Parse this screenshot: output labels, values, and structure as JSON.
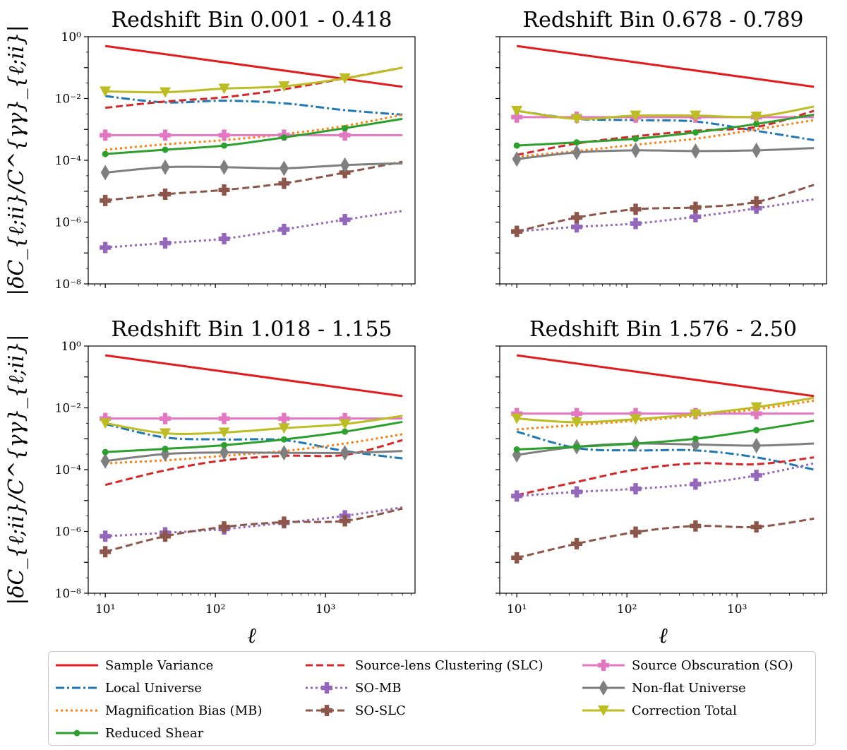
{
  "figure": {
    "ylabel": "|δC_{ℓ;ii}/C^{γγ}_{ℓ;ii}|",
    "xlabel": "ℓ"
  },
  "colors": {
    "sample_variance": "#e41a1c",
    "local_universe": "#1f77b4",
    "magnification_bias": "#ff7f0e",
    "reduced_shear": "#2ca02c",
    "slc": "#d62728",
    "so_mb": "#9467bd",
    "so_slc": "#8c564b",
    "so": "#e377c2",
    "nonflat": "#7f7f7f",
    "total": "#bcbd22"
  },
  "chart_data": [
    {
      "type": "line",
      "title": "Redshift Bin 0.001 - 0.418",
      "xscale": "log",
      "yscale": "log",
      "xlim": [
        7,
        6500
      ],
      "ylim": [
        1e-08,
        1
      ],
      "x": [
        10,
        35,
        120,
        420,
        1500,
        5000
      ],
      "xticks": [
        "10^1",
        "10^2",
        "10^3"
      ],
      "yticks": [
        "10^0",
        "10^-2",
        "10^-4",
        "10^-6",
        "10^-8"
      ],
      "series": [
        {
          "name": "Sample Variance",
          "key": "sample_variance",
          "values": [
            0.5,
            0.27,
            0.15,
            0.08,
            0.045,
            0.024
          ]
        },
        {
          "name": "Local Universe",
          "key": "local_universe",
          "values": [
            0.012,
            0.0075,
            0.0085,
            0.007,
            0.0042,
            0.003
          ]
        },
        {
          "name": "Magnification Bias (MB)",
          "key": "magnification_bias",
          "values": [
            0.00022,
            0.00033,
            0.00045,
            0.0007,
            0.0013,
            0.003
          ]
        },
        {
          "name": "Reduced Shear",
          "key": "reduced_shear",
          "values": [
            0.00016,
            0.00022,
            0.0003,
            0.00055,
            0.0011,
            0.0022
          ]
        },
        {
          "name": "Source-lens Clustering (SLC)",
          "key": "slc",
          "values": [
            0.005,
            0.008,
            0.011,
            0.02,
            0.045,
            0.1
          ]
        },
        {
          "name": "SO-MB",
          "key": "so_mb",
          "values": [
            1.5e-07,
            2.1e-07,
            2.9e-07,
            5.8e-07,
            1.2e-06,
            2.3e-06
          ]
        },
        {
          "name": "SO-SLC",
          "key": "so_slc",
          "values": [
            5e-06,
            8e-06,
            1.1e-05,
            1.8e-05,
            4e-05,
            9e-05
          ]
        },
        {
          "name": "Source Obscuration (SO)",
          "key": "so",
          "values": [
            0.00065,
            0.00065,
            0.00065,
            0.00065,
            0.00065,
            0.00065
          ]
        },
        {
          "name": "Non-flat Universe",
          "key": "nonflat",
          "values": [
            4e-05,
            6e-05,
            6e-05,
            5.5e-05,
            7e-05,
            8e-05
          ]
        },
        {
          "name": "Correction Total",
          "key": "total",
          "values": [
            0.017,
            0.016,
            0.021,
            0.025,
            0.045,
            0.1
          ]
        }
      ]
    },
    {
      "type": "line",
      "title": "Redshift Bin 0.678 - 0.789",
      "xscale": "log",
      "yscale": "log",
      "xlim": [
        7,
        6500
      ],
      "ylim": [
        1e-08,
        1
      ],
      "x": [
        10,
        35,
        120,
        420,
        1500,
        5000
      ],
      "xticks": [
        "10^1",
        "10^2",
        "10^3"
      ],
      "yticks": [
        "10^0",
        "10^-2",
        "10^-4",
        "10^-6",
        "10^-8"
      ],
      "series": [
        {
          "name": "Sample Variance",
          "key": "sample_variance",
          "values": [
            0.5,
            0.27,
            0.15,
            0.08,
            0.045,
            0.024
          ]
        },
        {
          "name": "Local Universe",
          "key": "local_universe",
          "values": [
            0.004,
            0.0022,
            0.002,
            0.0018,
            0.0009,
            0.00045
          ]
        },
        {
          "name": "Magnification Bias (MB)",
          "key": "magnification_bias",
          "values": [
            0.00013,
            0.0002,
            0.00032,
            0.0005,
            0.001,
            0.002
          ]
        },
        {
          "name": "Reduced Shear",
          "key": "reduced_shear",
          "values": [
            0.0003,
            0.00038,
            0.0005,
            0.0008,
            0.0015,
            0.003
          ]
        },
        {
          "name": "Source-lens Clustering (SLC)",
          "key": "slc",
          "values": [
            0.00015,
            0.00035,
            0.0006,
            0.0009,
            0.0012,
            0.004
          ]
        },
        {
          "name": "SO-MB",
          "key": "so_mb",
          "values": [
            5e-07,
            7e-07,
            9e-07,
            1.5e-06,
            2.8e-06,
            5.5e-06
          ]
        },
        {
          "name": "SO-SLC",
          "key": "so_slc",
          "values": [
            5e-07,
            1.4e-06,
            2.6e-06,
            3e-06,
            4.5e-06,
            1.6e-05
          ]
        },
        {
          "name": "Source Obscuration (SO)",
          "key": "so",
          "values": [
            0.0025,
            0.0025,
            0.0025,
            0.0025,
            0.0025,
            0.0025
          ]
        },
        {
          "name": "Non-flat Universe",
          "key": "nonflat",
          "values": [
            0.00011,
            0.00018,
            0.00021,
            0.0002,
            0.00021,
            0.00025
          ]
        },
        {
          "name": "Correction Total",
          "key": "total",
          "values": [
            0.004,
            0.0022,
            0.0028,
            0.0028,
            0.0026,
            0.0055
          ]
        }
      ]
    },
    {
      "type": "line",
      "title": "Redshift Bin 1.018 - 1.155",
      "xscale": "log",
      "yscale": "log",
      "xlim": [
        7,
        6500
      ],
      "ylim": [
        1e-08,
        1
      ],
      "x": [
        10,
        35,
        120,
        420,
        1500,
        5000
      ],
      "xticks": [
        "10^1",
        "10^2",
        "10^3"
      ],
      "yticks": [
        "10^0",
        "10^-2",
        "10^-4",
        "10^-6",
        "10^-8"
      ],
      "series": [
        {
          "name": "Sample Variance",
          "key": "sample_variance",
          "values": [
            0.5,
            0.27,
            0.15,
            0.08,
            0.045,
            0.024
          ]
        },
        {
          "name": "Local Universe",
          "key": "local_universe",
          "values": [
            0.003,
            0.0011,
            0.00095,
            0.0009,
            0.0004,
            0.00023
          ]
        },
        {
          "name": "Magnification Bias (MB)",
          "key": "magnification_bias",
          "values": [
            0.00016,
            0.0002,
            0.00028,
            0.0004,
            0.0007,
            0.0014
          ]
        },
        {
          "name": "Reduced Shear",
          "key": "reduced_shear",
          "values": [
            0.00037,
            0.00047,
            0.00062,
            0.00095,
            0.0017,
            0.0035
          ]
        },
        {
          "name": "Source-lens Clustering (SLC)",
          "key": "slc",
          "values": [
            3.2e-05,
            9.5e-05,
            0.0002,
            0.00028,
            0.0003,
            0.0009
          ]
        },
        {
          "name": "SO-MB",
          "key": "so_mb",
          "values": [
            7e-07,
            9e-07,
            1.2e-06,
            1.9e-06,
            3.2e-06,
            6e-06
          ]
        },
        {
          "name": "SO-SLC",
          "key": "so_slc",
          "values": [
            2.2e-07,
            7e-07,
            1.4e-06,
            2e-06,
            2.2e-06,
            5.5e-06
          ]
        },
        {
          "name": "Source Obscuration (SO)",
          "key": "so",
          "values": [
            0.0045,
            0.0045,
            0.0045,
            0.0045,
            0.0045,
            0.0045
          ]
        },
        {
          "name": "Non-flat Universe",
          "key": "nonflat",
          "values": [
            0.00019,
            0.00032,
            0.00036,
            0.00035,
            0.00035,
            0.0004
          ]
        },
        {
          "name": "Correction Total",
          "key": "total",
          "values": [
            0.0032,
            0.0015,
            0.0016,
            0.0022,
            0.003,
            0.0055
          ]
        }
      ]
    },
    {
      "type": "line",
      "title": "Redshift Bin 1.576 - 2.50",
      "xscale": "log",
      "yscale": "log",
      "xlim": [
        7,
        6500
      ],
      "ylim": [
        1e-08,
        1
      ],
      "x": [
        10,
        35,
        120,
        420,
        1500,
        5000
      ],
      "xticks": [
        "10^1",
        "10^2",
        "10^3"
      ],
      "yticks": [
        "10^0",
        "10^-2",
        "10^-4",
        "10^-6",
        "10^-8"
      ],
      "series": [
        {
          "name": "Sample Variance",
          "key": "sample_variance",
          "values": [
            0.5,
            0.27,
            0.15,
            0.08,
            0.045,
            0.024
          ]
        },
        {
          "name": "Local Universe",
          "key": "local_universe",
          "values": [
            0.0017,
            0.0005,
            0.00042,
            0.00042,
            0.00025,
            0.0001
          ]
        },
        {
          "name": "Magnification Bias (MB)",
          "key": "magnification_bias",
          "values": [
            0.002,
            0.0028,
            0.0038,
            0.0055,
            0.009,
            0.017
          ]
        },
        {
          "name": "Reduced Shear",
          "key": "reduced_shear",
          "values": [
            0.00045,
            0.00055,
            0.0007,
            0.001,
            0.0019,
            0.0038
          ]
        },
        {
          "name": "Source-lens Clustering (SLC)",
          "key": "slc",
          "values": [
            1.5e-05,
            4e-05,
            0.0001,
            0.00016,
            0.00015,
            0.00025
          ]
        },
        {
          "name": "SO-MB",
          "key": "so_mb",
          "values": [
            1.4e-05,
            1.9e-05,
            2.4e-05,
            3.4e-05,
            6.5e-05,
            0.00016
          ]
        },
        {
          "name": "SO-SLC",
          "key": "so_slc",
          "values": [
            1.4e-07,
            4e-07,
            9.5e-07,
            1.5e-06,
            1.4e-06,
            2.6e-06
          ]
        },
        {
          "name": "Source Obscuration (SO)",
          "key": "so",
          "values": [
            0.0065,
            0.0065,
            0.0065,
            0.0065,
            0.0065,
            0.0065
          ]
        },
        {
          "name": "Non-flat Universe",
          "key": "nonflat",
          "values": [
            0.0003,
            0.00055,
            0.0007,
            0.00065,
            0.0006,
            0.0007
          ]
        },
        {
          "name": "Correction Total",
          "key": "total",
          "values": [
            0.0045,
            0.0034,
            0.0043,
            0.0062,
            0.0105,
            0.021
          ]
        }
      ]
    }
  ],
  "legend": {
    "items": [
      {
        "key": "sample_variance",
        "label": "Sample Variance"
      },
      {
        "key": "local_universe",
        "label": "Local Universe"
      },
      {
        "key": "magnification_bias",
        "label": "Magnification Bias (MB)"
      },
      {
        "key": "reduced_shear",
        "label": "Reduced Shear"
      },
      {
        "key": "slc",
        "label": "Source-lens Clustering (SLC)"
      },
      {
        "key": "so_mb",
        "label": "SO-MB"
      },
      {
        "key": "so_slc",
        "label": "SO-SLC"
      },
      {
        "key": "so",
        "label": "Source Obscuration (SO)"
      },
      {
        "key": "nonflat",
        "label": "Non-flat Universe"
      },
      {
        "key": "total",
        "label": "Correction Total"
      }
    ]
  }
}
